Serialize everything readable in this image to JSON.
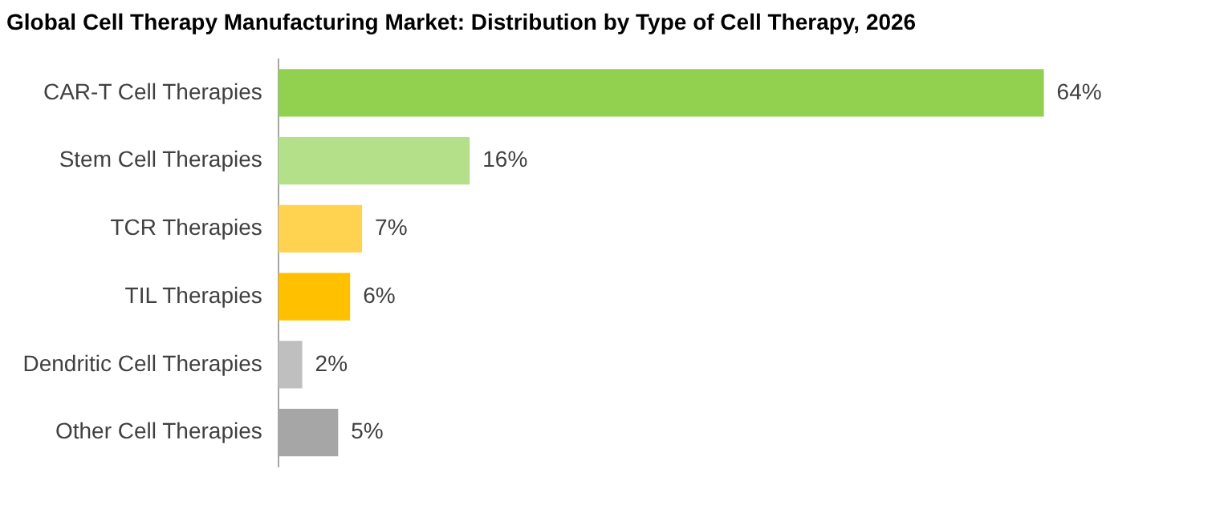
{
  "chart_data": {
    "type": "bar",
    "orientation": "horizontal",
    "title": "Global Cell Therapy Manufacturing Market: Distribution by Type of Cell Therapy, 2026",
    "categories": [
      "CAR-T Cell Therapies",
      "Stem Cell Therapies",
      "TCR Therapies",
      "TIL Therapies",
      "Dendritic Cell Therapies",
      "Other Cell Therapies"
    ],
    "values": [
      64,
      16,
      7,
      6,
      2,
      5
    ],
    "value_labels": [
      "64%",
      "16%",
      "7%",
      "6%",
      "2%",
      "5%"
    ],
    "colors": [
      "#92d050",
      "#b4e08a",
      "#ffd34f",
      "#ffc000",
      "#bfbfbf",
      "#a6a6a6"
    ],
    "legend": false,
    "tick_labels": "y"
  }
}
